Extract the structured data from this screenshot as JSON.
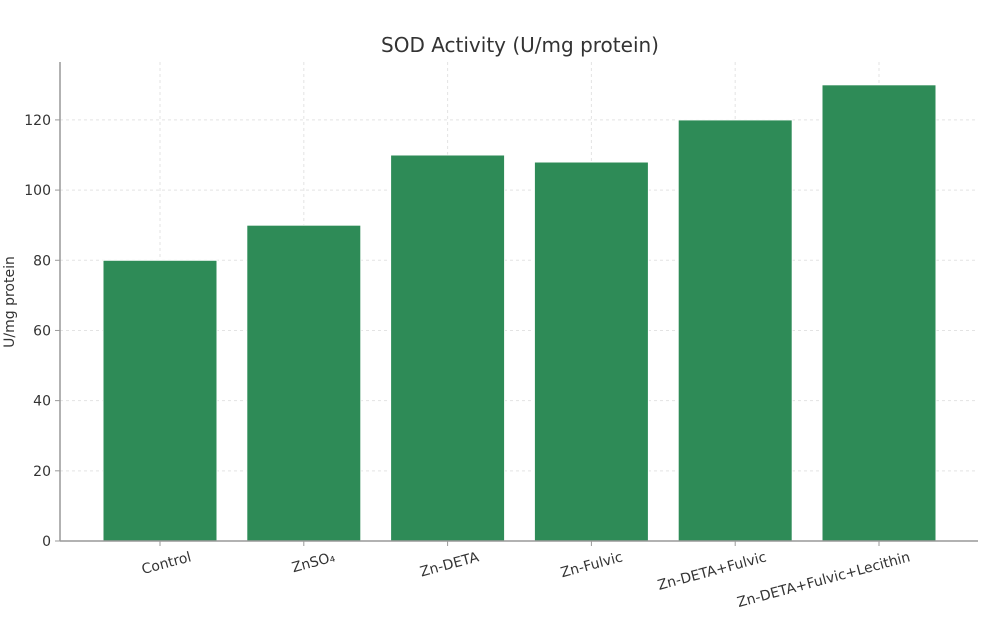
{
  "chart_data": {
    "type": "bar",
    "title": "SOD Activity (U/mg protein)",
    "xlabel": "",
    "ylabel": "U/mg protein",
    "categories": [
      "Control",
      "ZnSO₄",
      "Zn-DETA",
      "Zn-Fulvic",
      "Zn-DETA+Fulvic",
      "Zn-DETA+Fulvic+Lecithin"
    ],
    "values": [
      80,
      90,
      110,
      108,
      120,
      130
    ],
    "ylim": [
      0,
      136.5
    ],
    "yticks": [
      0,
      20,
      40,
      60,
      80,
      100,
      120
    ],
    "grid": true,
    "bar_color": "#2e8b57"
  }
}
